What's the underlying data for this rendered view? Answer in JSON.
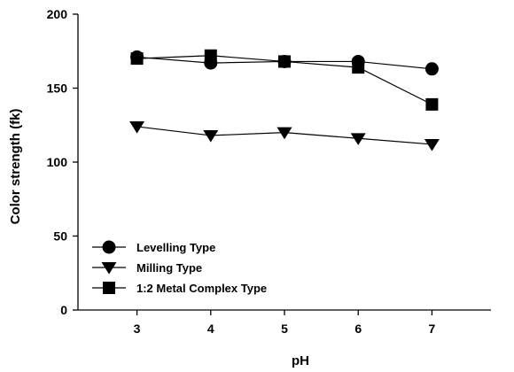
{
  "chart_data": {
    "type": "line",
    "xlabel": "pH",
    "ylabel": "Color  strength (fk)",
    "xlim": [
      2.2,
      7.8
    ],
    "ylim": [
      0,
      200
    ],
    "x_ticks": [
      3,
      4,
      5,
      6,
      7
    ],
    "y_ticks": [
      0,
      50,
      100,
      150,
      200
    ],
    "grid": false,
    "legend_position": "bottom-left",
    "x": [
      3,
      4,
      5,
      6,
      7
    ],
    "series": [
      {
        "name": "Levelling Type",
        "marker": "circle",
        "values": [
          171,
          167,
          168,
          168,
          163
        ]
      },
      {
        "name": "Milling Type",
        "marker": "triangle-down",
        "values": [
          124,
          118,
          120,
          116,
          112
        ]
      },
      {
        "name": "1:2 Metal Complex Type",
        "marker": "square",
        "values": [
          170,
          172,
          168,
          164,
          139
        ]
      }
    ]
  }
}
